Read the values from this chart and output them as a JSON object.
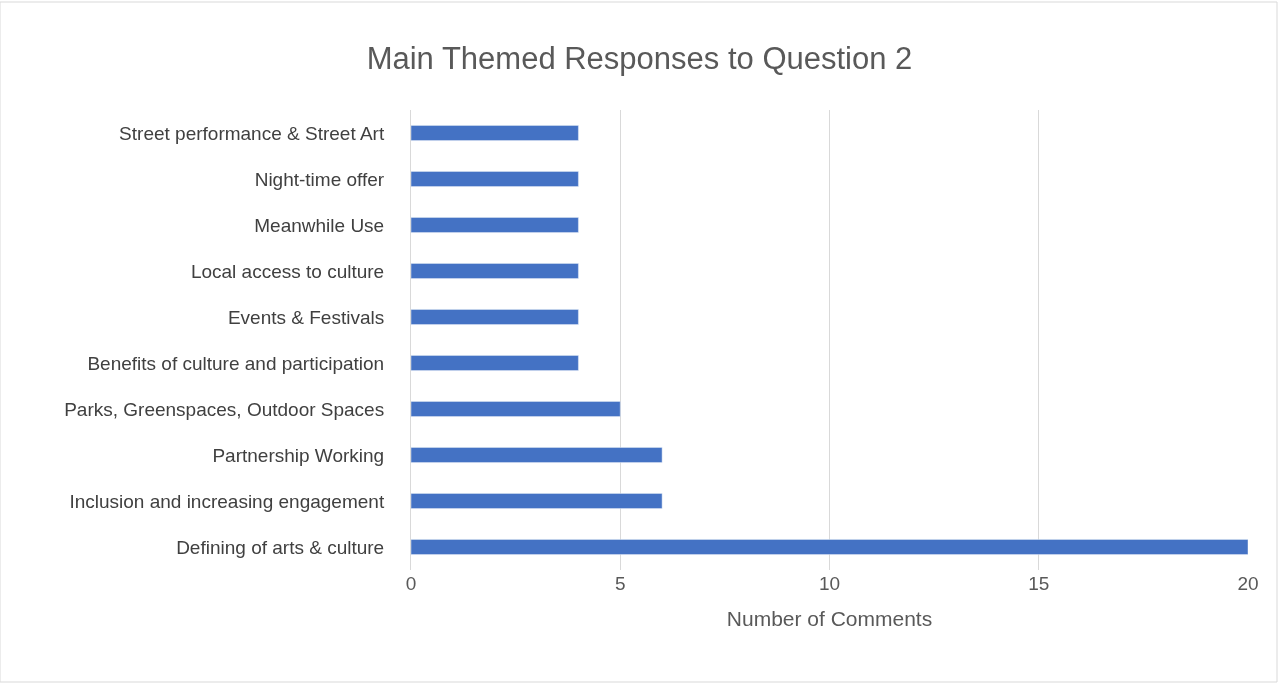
{
  "chart_data": {
    "type": "bar",
    "orientation": "horizontal",
    "title": "Main Themed Responses to Question 2",
    "xlabel": "Number of Comments",
    "categories": [
      "Street performance & Street Art",
      "Night-time offer",
      "Meanwhile Use",
      "Local access to culture",
      "Events & Festivals",
      "Benefits of culture and participation",
      "Parks, Greenspaces, Outdoor Spaces",
      "Partnership Working",
      "Inclusion and increasing engagement",
      "Defining of arts & culture"
    ],
    "values": [
      4,
      4,
      4,
      4,
      4,
      4,
      5,
      6,
      6,
      20
    ],
    "color": "#4472c4",
    "xlim": [
      0,
      20
    ],
    "xticks": [
      0,
      5,
      10,
      15,
      20
    ],
    "grid": "x"
  }
}
